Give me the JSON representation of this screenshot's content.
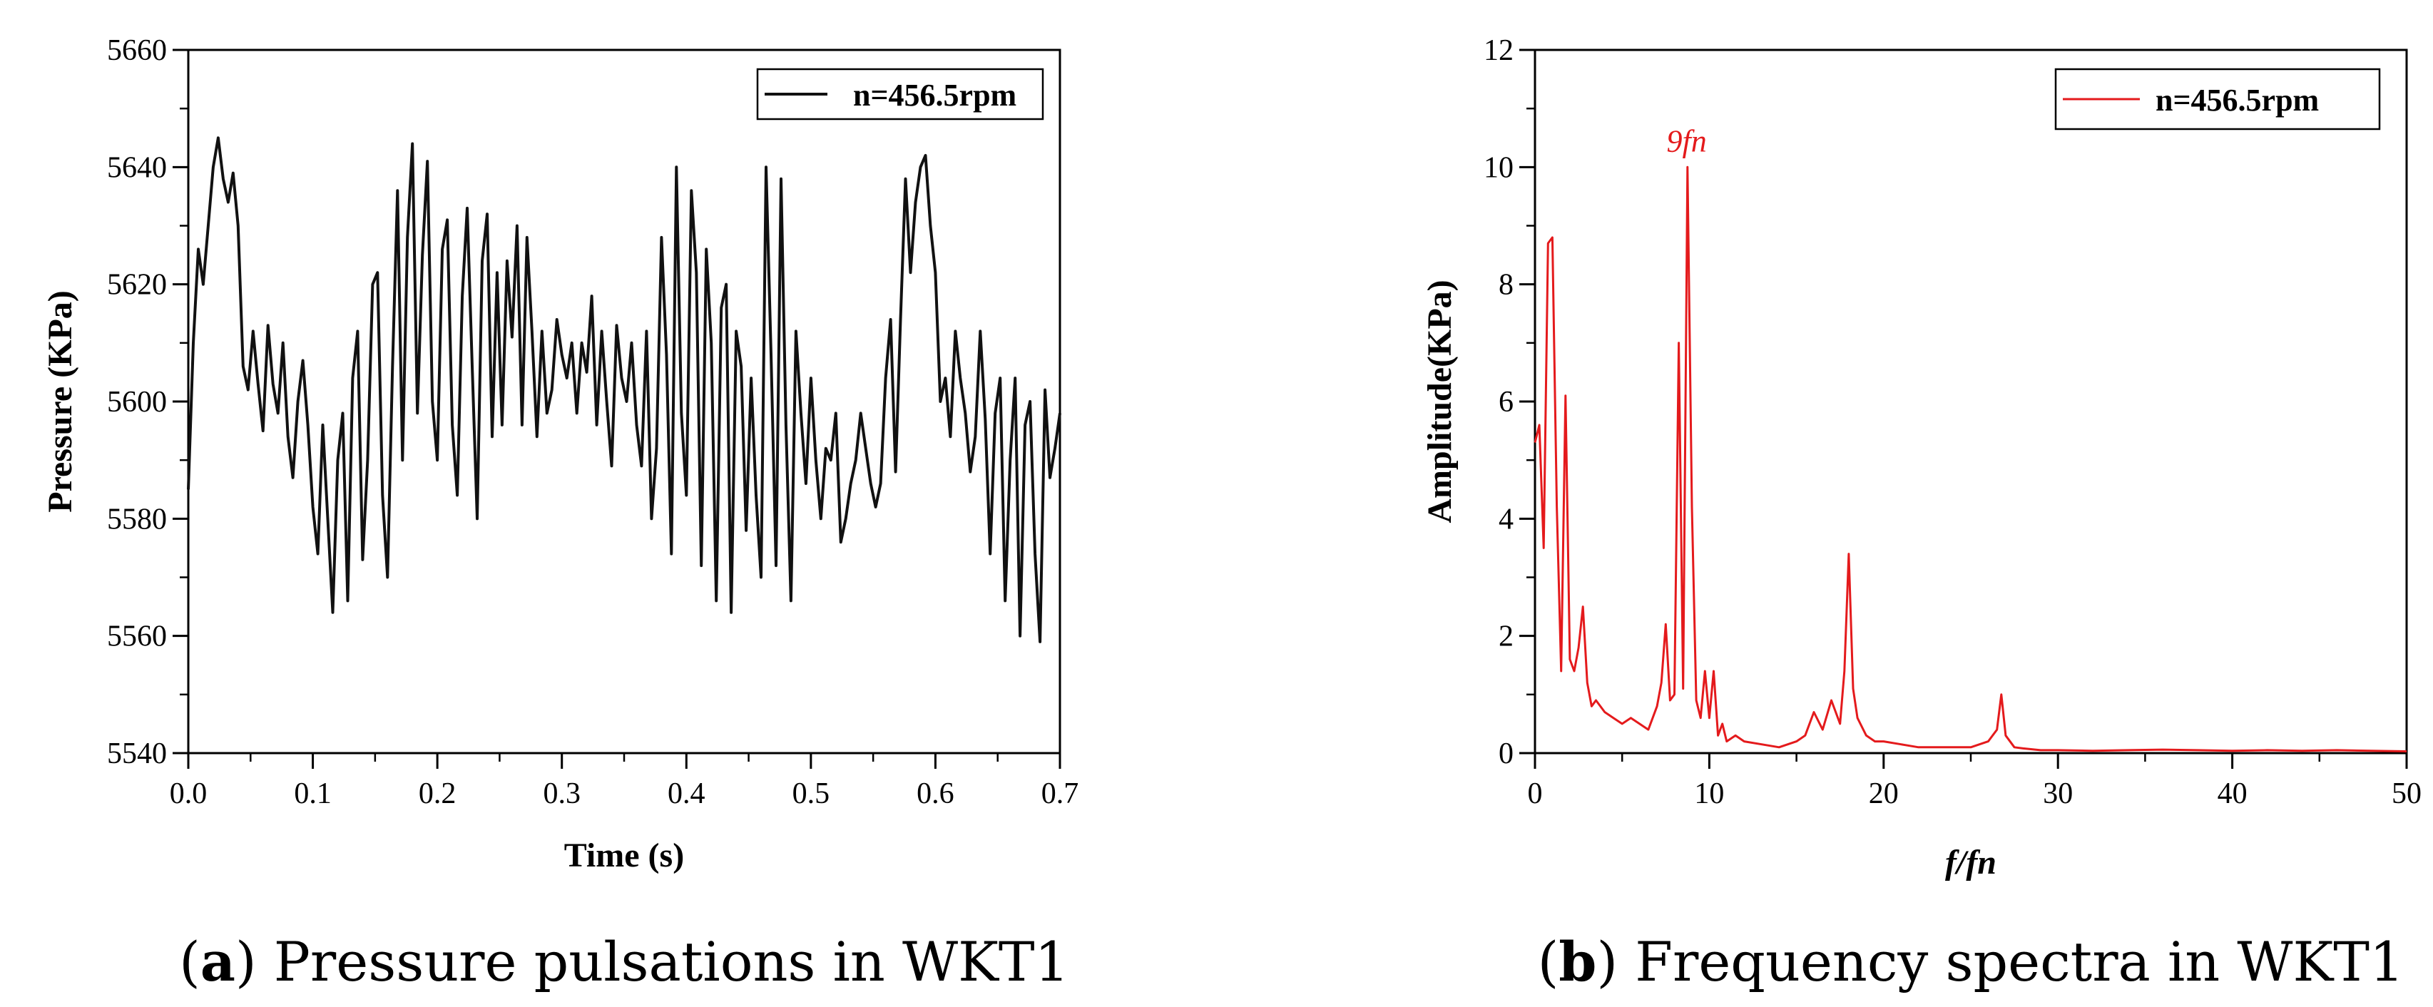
{
  "colors": {
    "series_a": "#111111",
    "series_b": "#e41a1c",
    "axis": "#000000"
  },
  "chart_data": [
    {
      "type": "line",
      "title": "",
      "caption_letter": "a",
      "caption_text": " Pressure pulsations in WKT1",
      "xlabel": "Time (s)",
      "ylabel": "Pressure (KPa)",
      "xlim": [
        0,
        0.7
      ],
      "ylim": [
        5540,
        5660
      ],
      "xticks": [
        0.0,
        0.1,
        0.2,
        0.3,
        0.4,
        0.5,
        0.6,
        0.7
      ],
      "xtick_labels": [
        "0.0",
        "0.1",
        "0.2",
        "0.3",
        "0.4",
        "0.5",
        "0.6",
        "0.7"
      ],
      "yticks": [
        5540,
        5560,
        5580,
        5600,
        5620,
        5640,
        5660
      ],
      "ytick_labels": [
        "5540",
        "5560",
        "5580",
        "5600",
        "5620",
        "5640",
        "5660"
      ],
      "legend": "n=456.5rpm",
      "legend_position": "top-right",
      "series": [
        {
          "name": "n=456.5rpm",
          "x": [
            0.0,
            0.004,
            0.008,
            0.012,
            0.016,
            0.02,
            0.024,
            0.028,
            0.032,
            0.036,
            0.04,
            0.044,
            0.048,
            0.052,
            0.056,
            0.06,
            0.064,
            0.068,
            0.072,
            0.076,
            0.08,
            0.084,
            0.088,
            0.092,
            0.096,
            0.1,
            0.104,
            0.108,
            0.112,
            0.116,
            0.12,
            0.124,
            0.128,
            0.132,
            0.136,
            0.14,
            0.144,
            0.148,
            0.152,
            0.156,
            0.16,
            0.164,
            0.168,
            0.172,
            0.176,
            0.18,
            0.184,
            0.188,
            0.192,
            0.196,
            0.2,
            0.204,
            0.208,
            0.212,
            0.216,
            0.22,
            0.224,
            0.228,
            0.232,
            0.236,
            0.24,
            0.244,
            0.248,
            0.252,
            0.256,
            0.26,
            0.264,
            0.268,
            0.272,
            0.276,
            0.28,
            0.284,
            0.288,
            0.292,
            0.296,
            0.3,
            0.304,
            0.308,
            0.312,
            0.316,
            0.32,
            0.324,
            0.328,
            0.332,
            0.336,
            0.34,
            0.344,
            0.348,
            0.352,
            0.356,
            0.36,
            0.364,
            0.368,
            0.372,
            0.376,
            0.38,
            0.384,
            0.388,
            0.392,
            0.396,
            0.4,
            0.404,
            0.408,
            0.412,
            0.416,
            0.42,
            0.424,
            0.428,
            0.432,
            0.436,
            0.44,
            0.444,
            0.448,
            0.452,
            0.456,
            0.46,
            0.464,
            0.468,
            0.472,
            0.476,
            0.48,
            0.484,
            0.488,
            0.492,
            0.496,
            0.5,
            0.504,
            0.508,
            0.512,
            0.516,
            0.52,
            0.524,
            0.528,
            0.532,
            0.536,
            0.54,
            0.544,
            0.548,
            0.552,
            0.556,
            0.56,
            0.564,
            0.568,
            0.572,
            0.576,
            0.58,
            0.584,
            0.588,
            0.592,
            0.596,
            0.6,
            0.604,
            0.608,
            0.612,
            0.616,
            0.62,
            0.624,
            0.628,
            0.632,
            0.636,
            0.64,
            0.644,
            0.648,
            0.652,
            0.656,
            0.66,
            0.664,
            0.668,
            0.672,
            0.676,
            0.68,
            0.684,
            0.688,
            0.692,
            0.696,
            0.7
          ],
          "values": [
            5585,
            5610,
            5626,
            5620,
            5630,
            5640,
            5645,
            5638,
            5634,
            5639,
            5630,
            5606,
            5602,
            5612,
            5603,
            5595,
            5613,
            5603,
            5598,
            5610,
            5594,
            5587,
            5600,
            5607,
            5596,
            5582,
            5574,
            5596,
            5580,
            5564,
            5590,
            5598,
            5566,
            5604,
            5612,
            5573,
            5590,
            5620,
            5622,
            5584,
            5570,
            5606,
            5636,
            5590,
            5628,
            5644,
            5598,
            5625,
            5641,
            5600,
            5590,
            5626,
            5631,
            5596,
            5584,
            5618,
            5633,
            5606,
            5580,
            5624,
            5632,
            5594,
            5622,
            5596,
            5624,
            5611,
            5630,
            5596,
            5628,
            5612,
            5594,
            5612,
            5598,
            5602,
            5614,
            5608,
            5604,
            5610,
            5598,
            5610,
            5605,
            5618,
            5596,
            5612,
            5600,
            5589,
            5613,
            5604,
            5600,
            5610,
            5596,
            5589,
            5612,
            5580,
            5592,
            5628,
            5608,
            5574,
            5640,
            5598,
            5584,
            5636,
            5622,
            5572,
            5626,
            5610,
            5566,
            5616,
            5620,
            5564,
            5612,
            5606,
            5578,
            5604,
            5584,
            5570,
            5640,
            5608,
            5572,
            5638,
            5596,
            5566,
            5612,
            5598,
            5586,
            5604,
            5590,
            5580,
            5592,
            5590,
            5598,
            5576,
            5580,
            5586,
            5590,
            5598,
            5592,
            5586,
            5582,
            5586,
            5604,
            5614,
            5588,
            5614,
            5638,
            5622,
            5634,
            5640,
            5642,
            5630,
            5622,
            5600,
            5604,
            5594,
            5612,
            5604,
            5598,
            5588,
            5594,
            5612,
            5597,
            5574,
            5598,
            5604,
            5566,
            5590,
            5604,
            5560,
            5596,
            5600,
            5574,
            5559,
            5602,
            5587,
            5592,
            5598
          ]
        }
      ]
    },
    {
      "type": "line",
      "title": "",
      "caption_letter": "b",
      "caption_text": " Frequency spectra in WKT1",
      "xlabel": "f/fn",
      "ylabel": "Amplitude(KPa)",
      "xlim": [
        0,
        50
      ],
      "ylim": [
        0,
        12
      ],
      "xticks": [
        0,
        10,
        20,
        30,
        40,
        50
      ],
      "xtick_labels": [
        "0",
        "10",
        "20",
        "30",
        "40",
        "50"
      ],
      "yticks": [
        0,
        2,
        4,
        6,
        8,
        10,
        12
      ],
      "ytick_labels": [
        "0",
        "2",
        "4",
        "6",
        "8",
        "10",
        "12"
      ],
      "legend": "n=456.5rpm",
      "legend_position": "top-right",
      "annotation": {
        "text": "9fn",
        "x": 8.7,
        "y": 10.0
      },
      "series": [
        {
          "name": "n=456.5rpm",
          "x": [
            0.0,
            0.25,
            0.5,
            0.75,
            1.0,
            1.25,
            1.5,
            1.75,
            2.0,
            2.25,
            2.5,
            2.75,
            3.0,
            3.25,
            3.5,
            4.0,
            4.5,
            5.0,
            5.5,
            6.0,
            6.5,
            7.0,
            7.25,
            7.5,
            7.75,
            8.0,
            8.25,
            8.5,
            8.75,
            9.0,
            9.25,
            9.5,
            9.75,
            10.0,
            10.25,
            10.5,
            10.75,
            11.0,
            11.5,
            12.0,
            13.0,
            14.0,
            15.0,
            15.5,
            16.0,
            16.5,
            17.0,
            17.5,
            17.75,
            18.0,
            18.25,
            18.5,
            19.0,
            19.5,
            20.0,
            21.0,
            22.0,
            23.0,
            24.0,
            25.0,
            26.0,
            26.5,
            26.75,
            27.0,
            27.5,
            28.0,
            29.0,
            30.0,
            32.0,
            34.0,
            36.0,
            38.0,
            40.0,
            42.0,
            44.0,
            46.0,
            48.0,
            50.0
          ],
          "values": [
            5.3,
            5.6,
            3.5,
            8.7,
            8.8,
            4.2,
            1.4,
            6.1,
            1.6,
            1.4,
            1.8,
            2.5,
            1.2,
            0.8,
            0.9,
            0.7,
            0.6,
            0.5,
            0.6,
            0.5,
            0.4,
            0.8,
            1.2,
            2.2,
            0.9,
            1.0,
            7.0,
            1.1,
            10.0,
            4.2,
            0.9,
            0.6,
            1.4,
            0.6,
            1.4,
            0.3,
            0.5,
            0.2,
            0.3,
            0.2,
            0.15,
            0.1,
            0.2,
            0.3,
            0.7,
            0.4,
            0.9,
            0.5,
            1.4,
            3.4,
            1.1,
            0.6,
            0.3,
            0.2,
            0.2,
            0.15,
            0.1,
            0.1,
            0.1,
            0.1,
            0.2,
            0.4,
            1.0,
            0.3,
            0.1,
            0.08,
            0.05,
            0.05,
            0.04,
            0.05,
            0.06,
            0.05,
            0.04,
            0.05,
            0.04,
            0.05,
            0.04,
            0.03
          ]
        }
      ]
    }
  ]
}
